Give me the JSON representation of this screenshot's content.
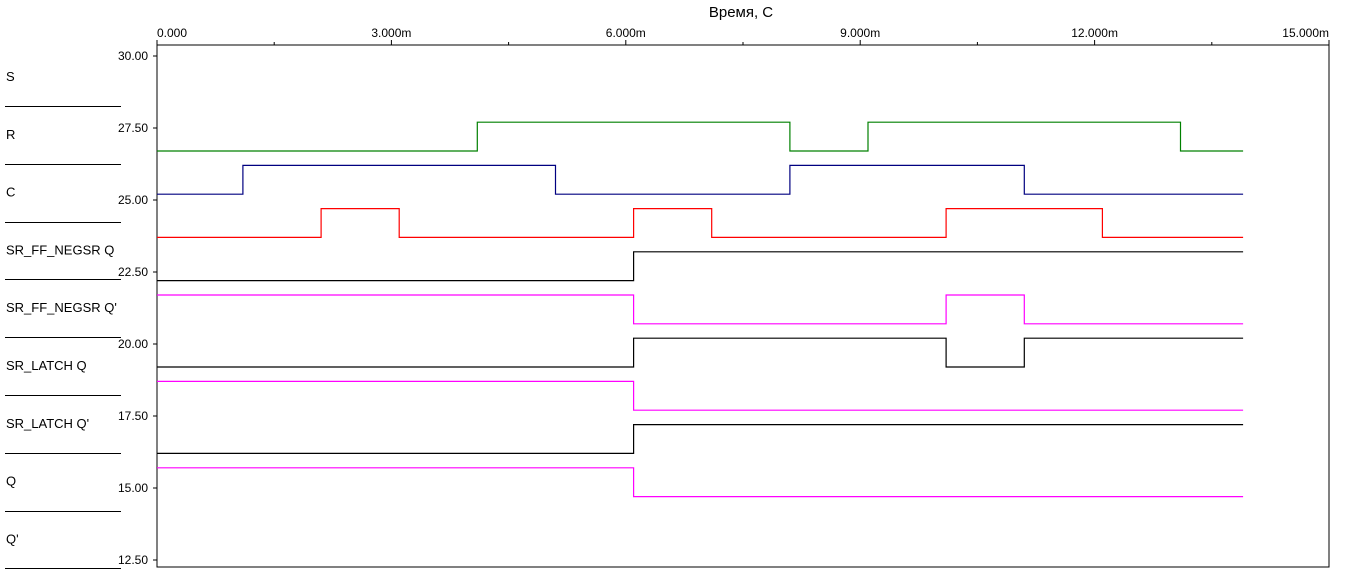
{
  "chart_data": {
    "type": "line",
    "title": "",
    "xlabel": "Время, С",
    "ylabel": "",
    "xlim": [
      0,
      15
    ],
    "ylim": [
      12.5,
      30
    ],
    "grid": false,
    "x_ticks": [
      {
        "value": 0,
        "label": "0.000"
      },
      {
        "value": 3,
        "label": "3.000m"
      },
      {
        "value": 6,
        "label": "6.000m"
      },
      {
        "value": 9,
        "label": "9.000m"
      },
      {
        "value": 12,
        "label": "12.000m"
      },
      {
        "value": 15,
        "label": "15.000m"
      }
    ],
    "x_minor_ticks": [
      1.5,
      4.5,
      7.5,
      10.5,
      13.5
    ],
    "y_ticks": [
      {
        "value": 30,
        "label": "30.00"
      },
      {
        "value": 27.5,
        "label": "27.50"
      },
      {
        "value": 25,
        "label": "25.00"
      },
      {
        "value": 22.5,
        "label": "22.50"
      },
      {
        "value": 20,
        "label": "20.00"
      },
      {
        "value": 17.5,
        "label": "17.50"
      },
      {
        "value": 15,
        "label": "15.00"
      },
      {
        "value": 12.5,
        "label": "12.50"
      }
    ],
    "legend_position": "left",
    "legend": [
      "S",
      "R",
      "C",
      "SR_FF_NEGSR Q",
      "SR_FF_NEGSR Q'",
      "SR_LATCH Q",
      "SR_LATCH Q'",
      "Q",
      "Q'"
    ],
    "series": [
      {
        "name": "S",
        "color": "#008000",
        "x": [
          0,
          4.1,
          8.1,
          9.1,
          13.1,
          13.9
        ],
        "y": [
          26.7,
          27.7,
          26.7,
          27.7,
          26.7,
          26.7
        ]
      },
      {
        "name": "R",
        "color": "#000080",
        "x": [
          0,
          1.1,
          5.1,
          8.1,
          11.1,
          13.9
        ],
        "y": [
          25.2,
          26.2,
          25.2,
          26.2,
          25.2,
          25.2
        ]
      },
      {
        "name": "C",
        "color": "#ff0000",
        "x": [
          0,
          2.1,
          3.1,
          6.1,
          7.1,
          10.1,
          12.1,
          13.9
        ],
        "y": [
          23.7,
          24.7,
          23.7,
          24.7,
          23.7,
          24.7,
          23.7,
          23.7
        ]
      },
      {
        "name": "SR_FF_NEGSR Q",
        "color": "#000000",
        "x": [
          0,
          6.1,
          13.9
        ],
        "y": [
          22.2,
          23.2,
          23.2
        ]
      },
      {
        "name": "SR_FF_NEGSR Q'",
        "color": "#ff00ff",
        "x": [
          0,
          6.1,
          10.1,
          11.1,
          13.9
        ],
        "y": [
          21.7,
          20.7,
          21.7,
          20.7,
          20.7
        ]
      },
      {
        "name": "SR_LATCH Q",
        "color": "#000000",
        "x": [
          0,
          6.1,
          10.1,
          11.1,
          13.9
        ],
        "y": [
          19.2,
          20.2,
          19.2,
          20.2,
          20.2
        ]
      },
      {
        "name": "SR_LATCH Q'",
        "color": "#ff00ff",
        "x": [
          0,
          6.1,
          13.9
        ],
        "y": [
          18.7,
          17.7,
          17.7
        ]
      },
      {
        "name": "Q",
        "color": "#000000",
        "x": [
          0,
          6.1,
          13.9
        ],
        "y": [
          16.2,
          17.2,
          17.2
        ]
      },
      {
        "name": "Q'",
        "color": "#ff00ff",
        "x": [
          0,
          6.1,
          13.9
        ],
        "y": [
          15.7,
          14.7,
          14.7
        ]
      }
    ]
  }
}
